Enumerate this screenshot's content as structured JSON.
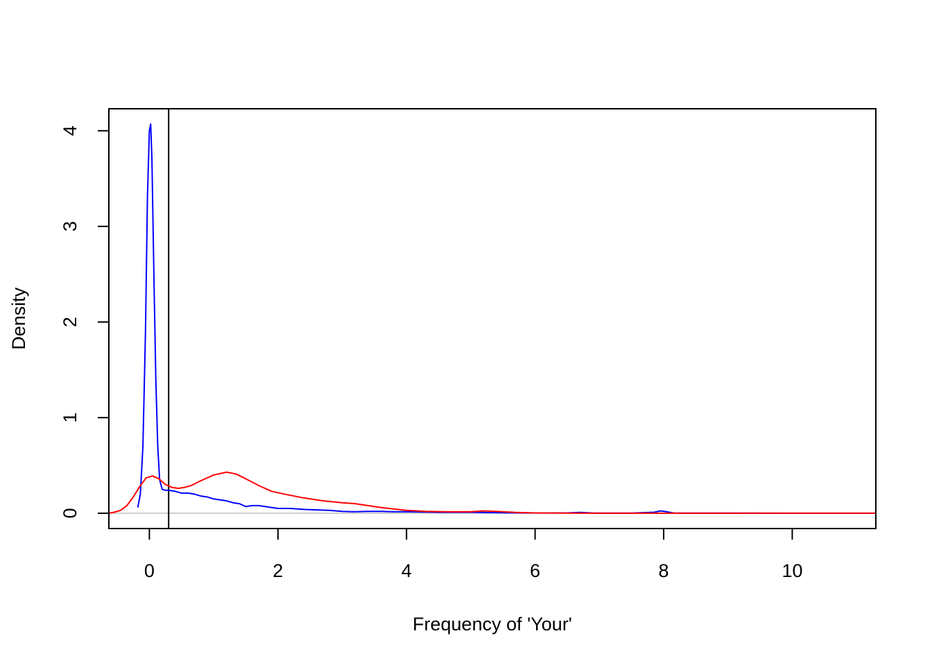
{
  "chart_data": {
    "type": "line",
    "title": "",
    "xlabel": "Frequency of 'Your'",
    "ylabel": "Density",
    "xlim": [
      -0.63,
      11.3
    ],
    "ylim": [
      -0.16,
      4.23
    ],
    "xticks": [
      0,
      2,
      4,
      6,
      8,
      10
    ],
    "yticks": [
      0,
      1,
      2,
      3,
      4
    ],
    "grid": false,
    "baseline": {
      "y": 0,
      "color": "#bebebe"
    },
    "vline": {
      "x": 0.3,
      "color": "#000000"
    },
    "series": [
      {
        "color": "#0000ff",
        "x": [
          -0.18,
          -0.14,
          -0.1,
          -0.06,
          -0.03,
          0.0,
          0.02,
          0.04,
          0.07,
          0.1,
          0.13,
          0.16,
          0.2,
          0.25,
          0.3,
          0.4,
          0.5,
          0.6,
          0.7,
          0.8,
          0.9,
          1.0,
          1.1,
          1.2,
          1.3,
          1.4,
          1.5,
          1.6,
          1.7,
          1.8,
          1.9,
          2.0,
          2.2,
          2.4,
          2.6,
          2.8,
          3.0,
          3.2,
          3.4,
          3.6,
          3.8,
          4.0,
          4.5,
          5.0,
          5.5,
          6.0,
          6.5,
          6.7,
          6.9,
          7.5,
          7.85,
          7.95,
          8.05,
          8.15,
          8.5,
          9.0,
          10.0,
          11.3
        ],
        "y": [
          0.06,
          0.2,
          0.7,
          1.9,
          3.3,
          4.0,
          4.07,
          3.7,
          2.5,
          1.4,
          0.7,
          0.35,
          0.25,
          0.24,
          0.24,
          0.23,
          0.21,
          0.21,
          0.2,
          0.18,
          0.17,
          0.15,
          0.14,
          0.13,
          0.11,
          0.1,
          0.07,
          0.08,
          0.08,
          0.07,
          0.06,
          0.05,
          0.05,
          0.04,
          0.035,
          0.03,
          0.02,
          0.015,
          0.02,
          0.02,
          0.015,
          0.015,
          0.01,
          0.01,
          0.005,
          0.003,
          0.003,
          0.008,
          0.002,
          0.001,
          0.01,
          0.025,
          0.015,
          0.002,
          0.001,
          0.001,
          0.0,
          0.0
        ]
      },
      {
        "color": "#ff0000",
        "x": [
          -0.63,
          -0.55,
          -0.45,
          -0.35,
          -0.25,
          -0.15,
          -0.05,
          0.05,
          0.15,
          0.25,
          0.35,
          0.45,
          0.55,
          0.65,
          0.8,
          1.0,
          1.2,
          1.35,
          1.5,
          1.7,
          1.9,
          2.1,
          2.4,
          2.7,
          3.0,
          3.2,
          3.4,
          3.6,
          3.8,
          4.0,
          4.3,
          4.6,
          5.0,
          5.2,
          5.4,
          5.7,
          6.0,
          6.5,
          7.0,
          8.0,
          9.0,
          10.0,
          11.3
        ],
        "y": [
          0.0,
          0.01,
          0.03,
          0.08,
          0.17,
          0.28,
          0.37,
          0.39,
          0.36,
          0.3,
          0.27,
          0.26,
          0.27,
          0.29,
          0.34,
          0.4,
          0.43,
          0.41,
          0.36,
          0.29,
          0.23,
          0.2,
          0.16,
          0.13,
          0.11,
          0.1,
          0.08,
          0.06,
          0.045,
          0.03,
          0.02,
          0.015,
          0.015,
          0.025,
          0.02,
          0.008,
          0.003,
          0.001,
          0.0,
          0.0,
          0.0,
          0.0,
          0.0
        ]
      }
    ]
  }
}
